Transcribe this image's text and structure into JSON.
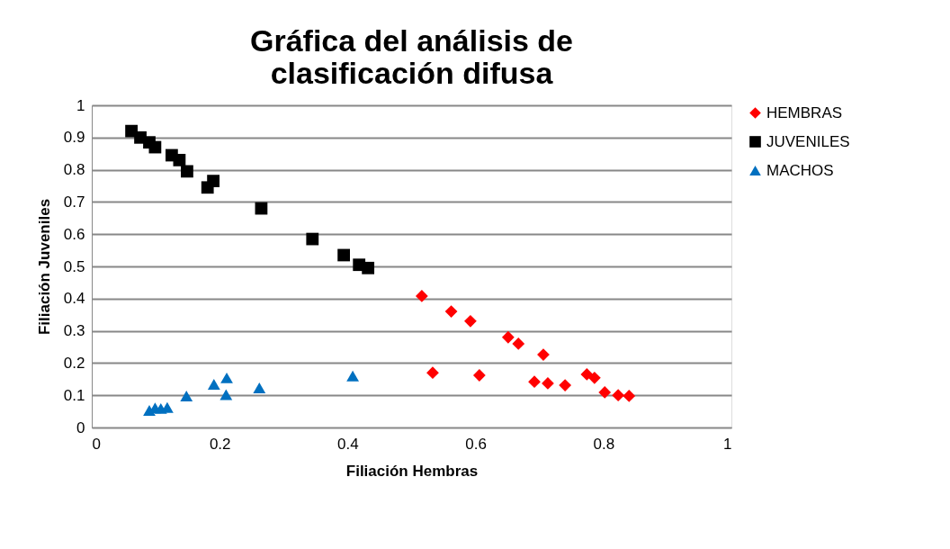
{
  "chart_data": {
    "type": "scatter",
    "title": [
      "Gráfica del análisis de",
      "clasificación difusa"
    ],
    "xlabel": "Filiación Hembras",
    "ylabel": "Filiación Juveniles",
    "xlim": [
      0,
      1
    ],
    "xticks": [
      0,
      0.2,
      0.4,
      0.6,
      0.8,
      1
    ],
    "ylim": [
      0,
      1
    ],
    "yticks": [
      0,
      0.1,
      0.2,
      0.3,
      0.4,
      0.5,
      0.6,
      0.7,
      0.8,
      0.9,
      1
    ],
    "grid": "y",
    "legend": "right",
    "series": [
      {
        "name": "HEMBRAS",
        "color": "#ff0000",
        "marker": "diamond",
        "x": [
          0.516,
          0.562,
          0.592,
          0.651,
          0.667,
          0.706,
          0.533,
          0.606,
          0.692,
          0.713,
          0.74,
          0.774,
          0.786,
          0.802,
          0.823,
          0.84
        ],
        "values": [
          0.408,
          0.36,
          0.33,
          0.28,
          0.26,
          0.226,
          0.17,
          0.162,
          0.142,
          0.137,
          0.131,
          0.165,
          0.154,
          0.109,
          0.1,
          0.098
        ]
      },
      {
        "name": "JUVENILES",
        "color": "#000000",
        "marker": "square",
        "x": [
          0.062,
          0.076,
          0.09,
          0.099,
          0.125,
          0.137,
          0.149,
          0.181,
          0.19,
          0.265,
          0.345,
          0.394,
          0.418,
          0.432
        ],
        "values": [
          0.92,
          0.9,
          0.885,
          0.87,
          0.845,
          0.83,
          0.795,
          0.745,
          0.765,
          0.68,
          0.585,
          0.535,
          0.505,
          0.495
        ]
      },
      {
        "name": "MACHOS",
        "color": "#0070c0",
        "marker": "triangle",
        "x": [
          0.09,
          0.099,
          0.108,
          0.118,
          0.148,
          0.191,
          0.211,
          0.21,
          0.262,
          0.408
        ],
        "values": [
          0.053,
          0.061,
          0.059,
          0.062,
          0.098,
          0.134,
          0.154,
          0.102,
          0.123,
          0.16
        ]
      }
    ]
  }
}
